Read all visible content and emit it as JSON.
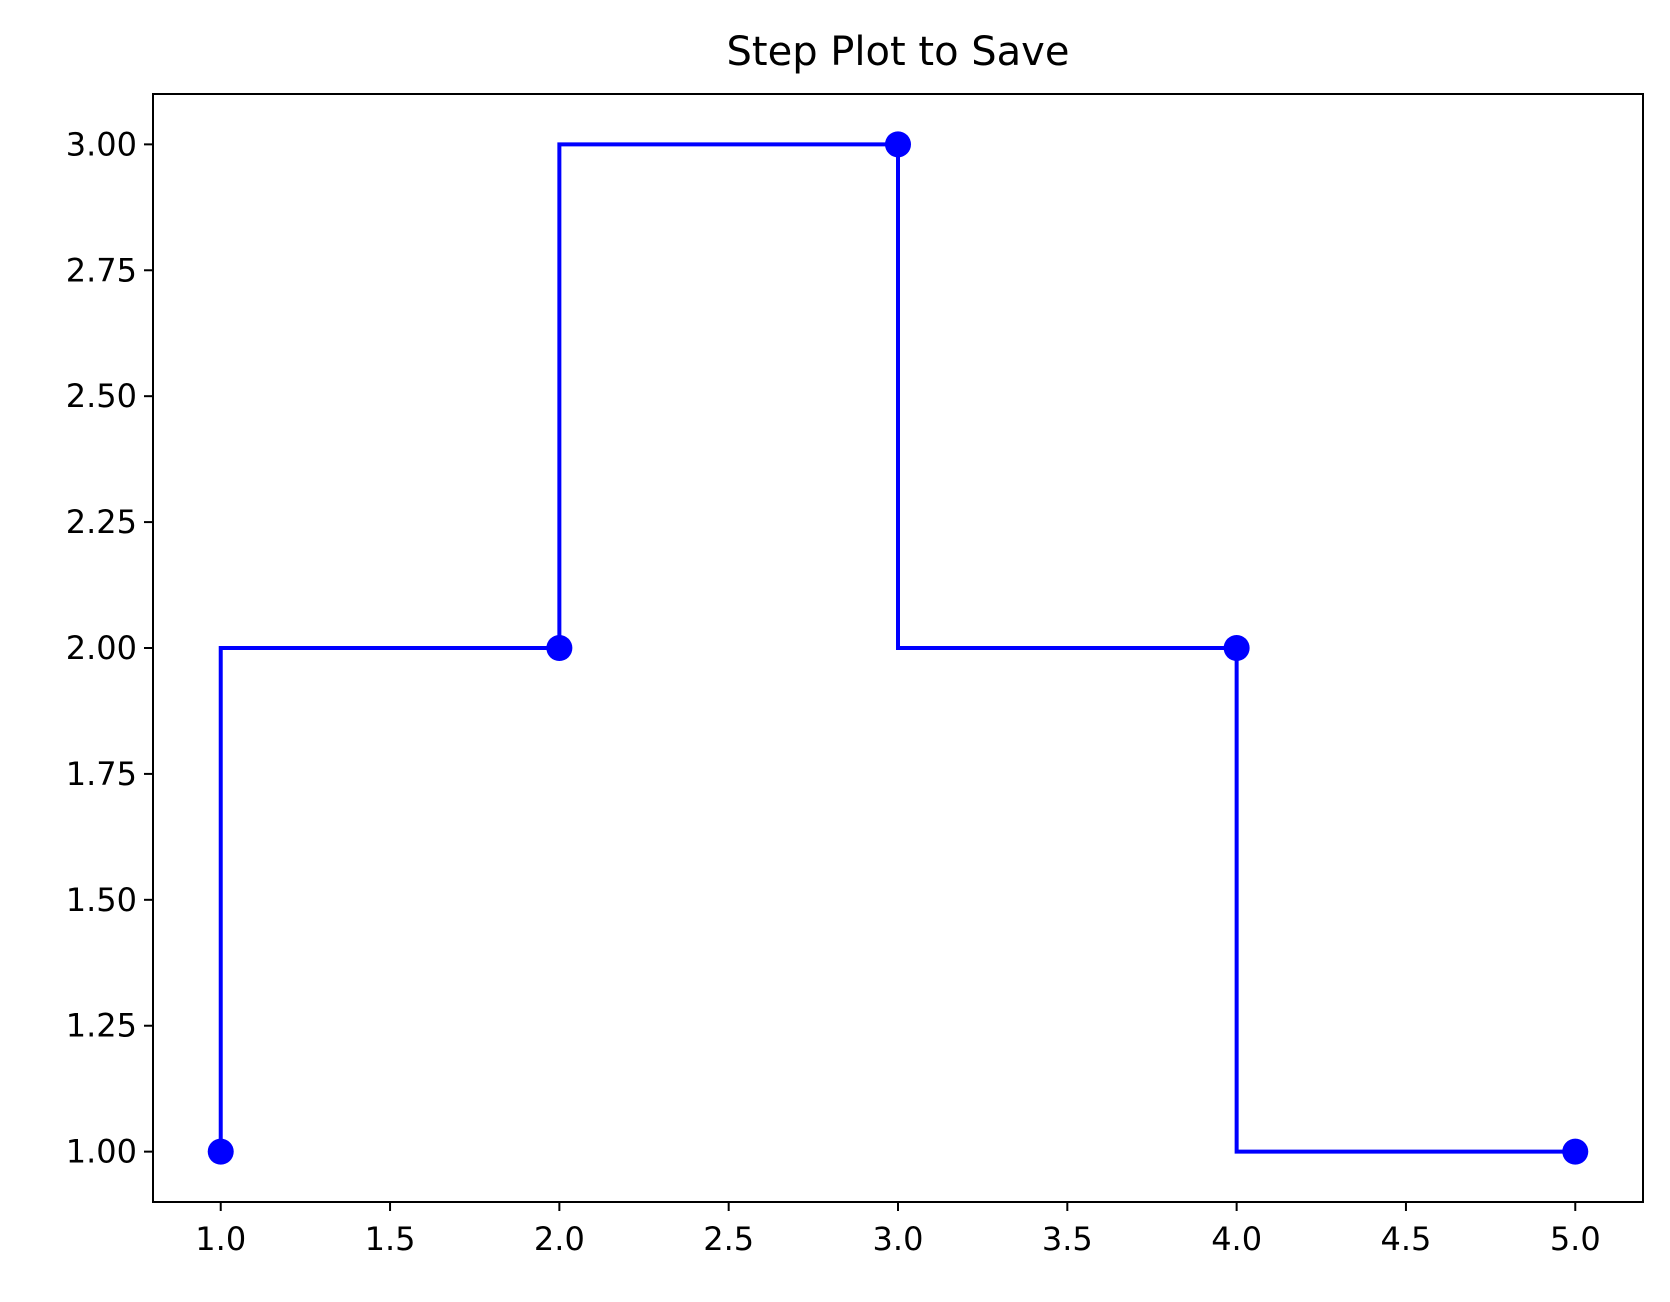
{
  "chart_data": {
    "type": "line",
    "title": "Step Plot to Save",
    "xlabel": "",
    "ylabel": "",
    "step_where": "pre",
    "x": [
      1,
      2,
      3,
      4,
      5
    ],
    "series": [
      {
        "values": [
          1,
          2,
          3,
          2,
          1
        ],
        "color": "#0000ff",
        "marker": "circle"
      }
    ],
    "xlim": [
      0.8,
      5.2
    ],
    "ylim": [
      0.9,
      3.1
    ],
    "xticks": [
      1.0,
      1.5,
      2.0,
      2.5,
      3.0,
      3.5,
      4.0,
      4.5,
      5.0
    ],
    "yticks": [
      1.0,
      1.25,
      1.5,
      1.75,
      2.0,
      2.25,
      2.5,
      2.75,
      3.0
    ],
    "xtick_labels": [
      "1.0",
      "1.5",
      "2.0",
      "2.5",
      "3.0",
      "3.5",
      "4.0",
      "4.5",
      "5.0"
    ],
    "ytick_labels": [
      "1.00",
      "1.25",
      "1.50",
      "1.75",
      "2.00",
      "2.25",
      "2.50",
      "2.75",
      "3.00"
    ],
    "grid": false,
    "legend": "none"
  }
}
